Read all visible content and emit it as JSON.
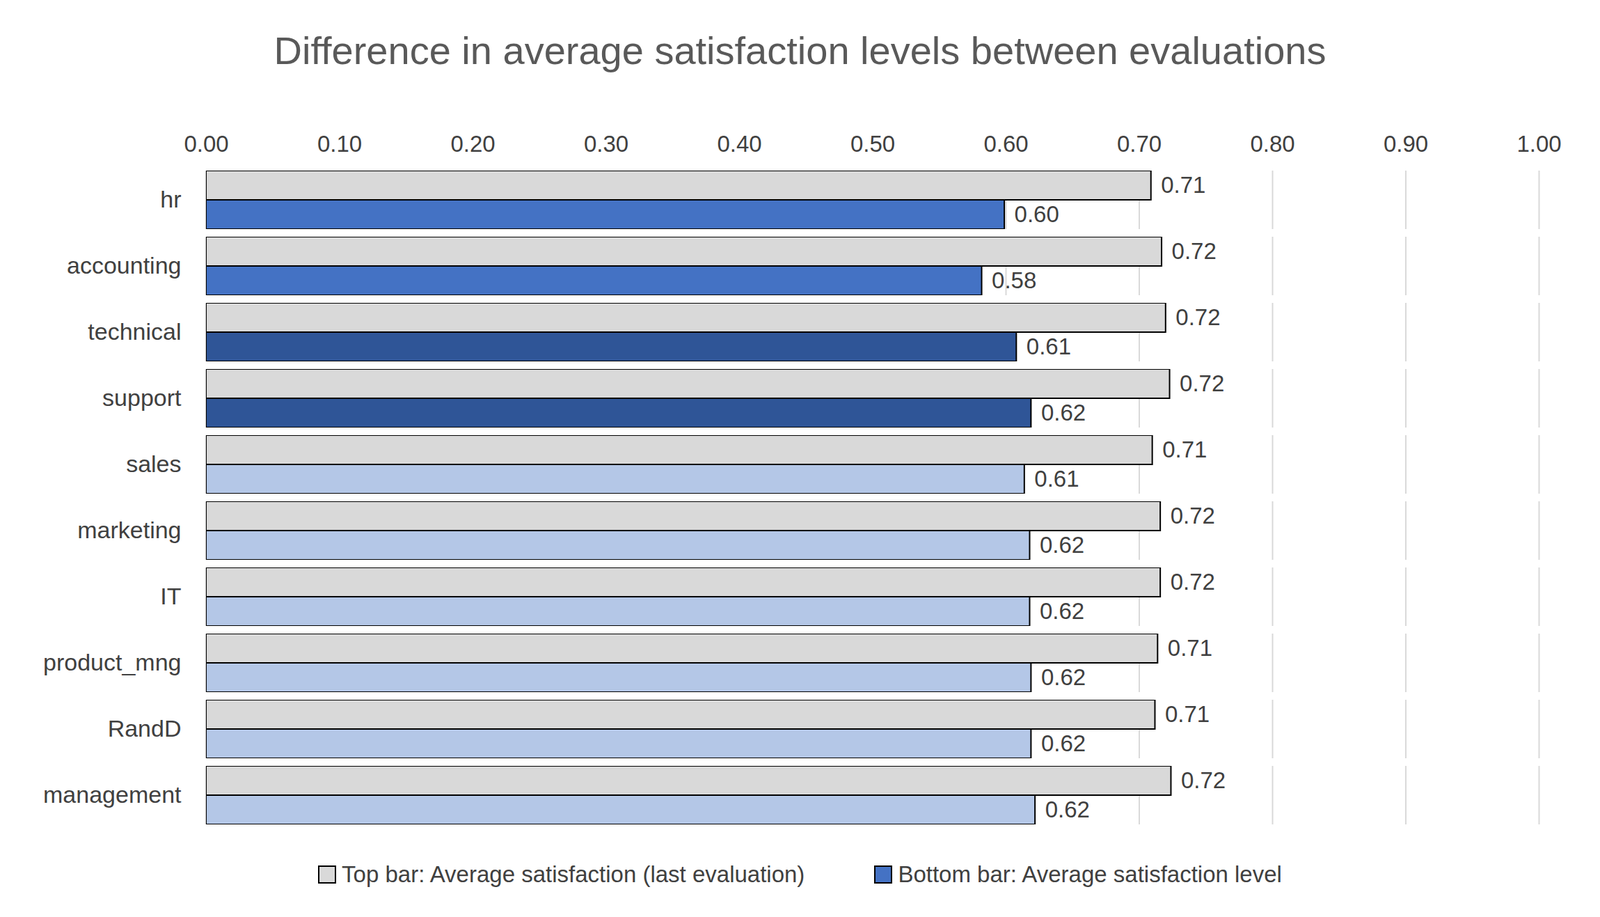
{
  "chart_data": {
    "type": "bar",
    "orientation": "horizontal",
    "title": "Difference in average satisfaction levels between evaluations",
    "categories": [
      "hr",
      "accounting",
      "technical",
      "support",
      "sales",
      "marketing",
      "IT",
      "product_mng",
      "RandD",
      "management"
    ],
    "series": [
      {
        "name": "Top bar: Average satisfaction (last evaluation)",
        "color": "#d9d9d9",
        "values": [
          0.709,
          0.717,
          0.72,
          0.723,
          0.71,
          0.716,
          0.716,
          0.714,
          0.712,
          0.724
        ],
        "value_labels": [
          "0.71",
          "0.72",
          "0.72",
          "0.72",
          "0.71",
          "0.72",
          "0.72",
          "0.71",
          "0.71",
          "0.72"
        ]
      },
      {
        "name": "Bottom bar: Average satisfaction level",
        "color": "#4472c4",
        "colors": [
          "#4472c4",
          "#4472c4",
          "#2f5597",
          "#2f5597",
          "#b4c7e7",
          "#b4c7e7",
          "#b4c7e7",
          "#b4c7e7",
          "#b4c7e7",
          "#b4c7e7"
        ],
        "values": [
          0.599,
          0.582,
          0.608,
          0.619,
          0.614,
          0.618,
          0.618,
          0.619,
          0.619,
          0.622
        ],
        "value_labels": [
          "0.60",
          "0.58",
          "0.61",
          "0.62",
          "0.61",
          "0.62",
          "0.62",
          "0.62",
          "0.62",
          "0.62"
        ]
      }
    ],
    "xlim": [
      0,
      1
    ],
    "xticks": [
      {
        "value": 0,
        "label": "0.00"
      },
      {
        "value": 0.1,
        "label": "0.10"
      },
      {
        "value": 0.2,
        "label": "0.20"
      },
      {
        "value": 0.3,
        "label": "0.30"
      },
      {
        "value": 0.4,
        "label": "0.40"
      },
      {
        "value": 0.5,
        "label": "0.50"
      },
      {
        "value": 0.6,
        "label": "0.60"
      },
      {
        "value": 0.7,
        "label": "0.70"
      },
      {
        "value": 0.8,
        "label": "0.80"
      },
      {
        "value": 0.9,
        "label": "0.90"
      },
      {
        "value": 1,
        "label": "1.00"
      }
    ],
    "grid": true,
    "data_labels": true,
    "legend": "bottom"
  }
}
